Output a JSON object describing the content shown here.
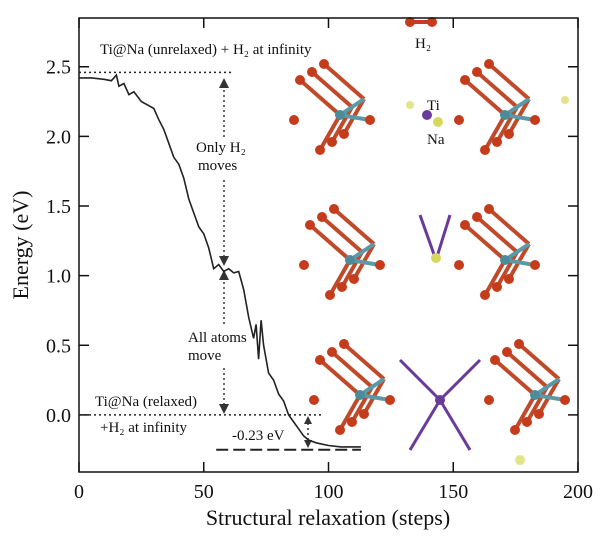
{
  "chart_data": {
    "type": "line",
    "xlabel": "Structural relaxation (steps)",
    "ylabel": "Energy (eV)",
    "xlim": [
      0,
      200
    ],
    "xticks": [
      0,
      50,
      100,
      150,
      200
    ],
    "ylim": [
      -0.41,
      2.85
    ],
    "yticks": [
      {
        "value": 0,
        "label": "0.0"
      },
      0.5,
      {
        "value": 1,
        "label": "1.0"
      },
      1.5,
      {
        "value": 2,
        "label": "2.0"
      },
      2.5
    ],
    "series": [
      {
        "color": "#222222",
        "x": [
          0,
          5,
          10,
          13,
          15,
          16,
          18,
          20,
          22,
          25,
          28,
          30,
          32,
          34,
          36,
          38,
          40,
          42,
          44,
          46,
          48,
          50,
          52,
          54,
          56,
          58,
          60,
          62,
          64,
          66,
          68,
          70,
          71,
          72,
          73,
          74,
          76,
          78,
          80,
          82,
          84,
          86,
          88,
          90,
          92,
          95,
          100,
          105,
          110,
          113
        ],
        "values": [
          2.42,
          2.42,
          2.41,
          2.4,
          2.44,
          2.36,
          2.38,
          2.3,
          2.32,
          2.25,
          2.22,
          2.2,
          2.12,
          2.05,
          1.95,
          1.85,
          1.8,
          1.7,
          1.55,
          1.45,
          1.35,
          1.3,
          1.2,
          1.05,
          1.08,
          1.03,
          1.05,
          1.02,
          1.03,
          0.9,
          0.7,
          0.55,
          0.65,
          0.4,
          0.68,
          0.5,
          0.3,
          0.25,
          0.15,
          0.1,
          0.0,
          -0.05,
          -0.1,
          -0.15,
          -0.18,
          -0.2,
          -0.22,
          -0.23,
          -0.23,
          -0.23
        ]
      }
    ],
    "reference_lines": [
      {
        "value": 2.46,
        "xlim": [
          0,
          61
        ],
        "style": "dotted"
      },
      {
        "value": 0,
        "xlim": [
          0,
          97
        ],
        "style": "dotted"
      },
      {
        "value": -0.25,
        "xlim": [
          55,
          113
        ],
        "style": "dashed"
      }
    ],
    "annotations": [
      "Ti@Na (unrelaxed) + H₂ at infinity",
      "Only H₂",
      "moves",
      "All atoms",
      "move",
      "Ti@Na (relaxed)",
      "+H₂ at infinity",
      "-0.23 eV"
    ],
    "image_labels": [
      "H₂",
      "Ti",
      "Na"
    ]
  }
}
